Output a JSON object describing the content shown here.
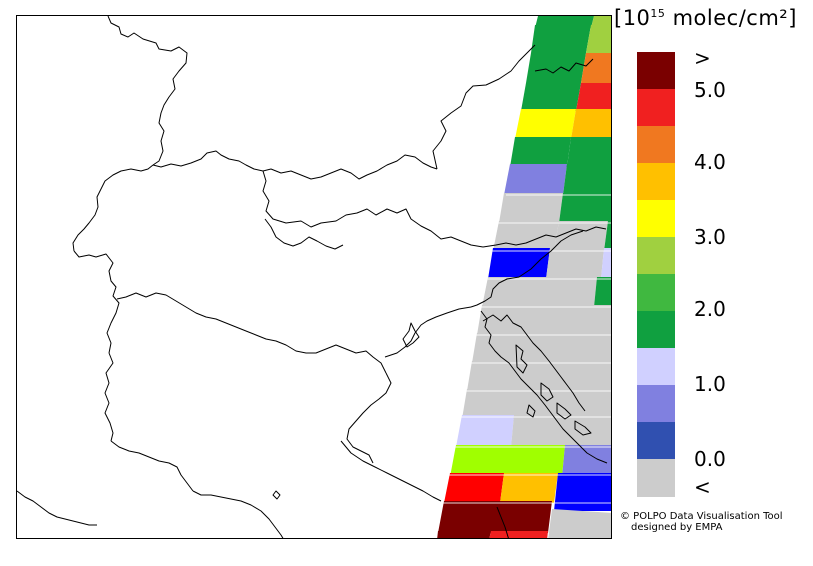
{
  "legend": {
    "title_prefix": "[10",
    "title_exponent": "15",
    "title_suffix": " molec/cm²]",
    "colors": [
      "#7a0000",
      "#f02020",
      "#f07820",
      "#ffc000",
      "#ffff00",
      "#a0d040",
      "#40b840",
      "#10a040",
      "#d0d0ff",
      "#8080e0",
      "#3050b0",
      "#cccccc"
    ],
    "tick_labels": [
      ">",
      "5.0",
      "4.0",
      "3.0",
      "2.0",
      "1.0",
      "0.0",
      "<"
    ]
  },
  "credit": {
    "line1": "© POLPO Data Visualisation Tool",
    "line2": "designed by EMPA"
  }
}
